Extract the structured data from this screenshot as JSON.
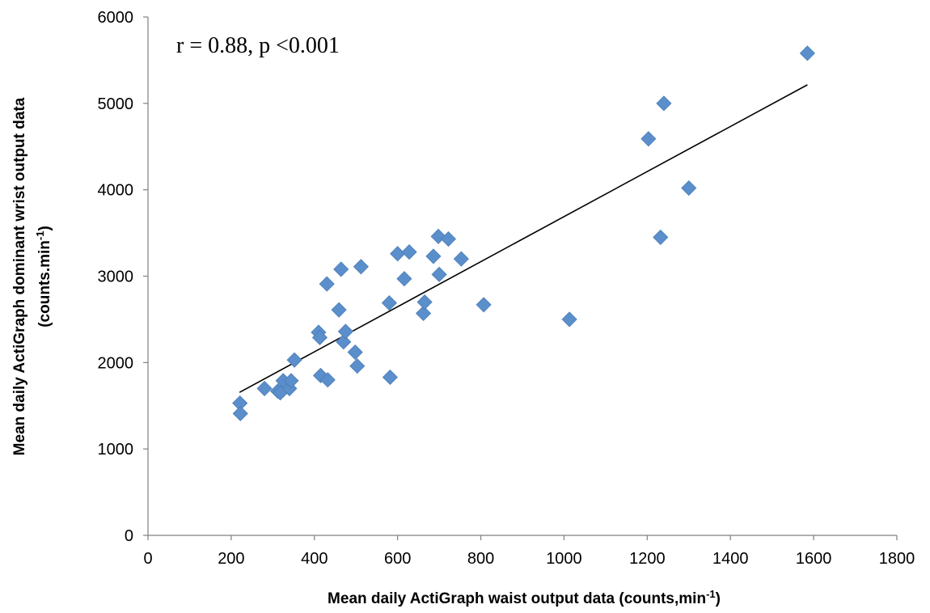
{
  "chart_data": {
    "type": "scatter",
    "title": "",
    "xlabel": "Mean daily ActiGraph waist output data (counts,min",
    "xlabel_sup": "-1",
    "xlabel_end": ")",
    "ylabel_line1": "Mean daily  ActiGraph dominant wrist output data",
    "ylabel_line2": "(counts.min",
    "ylabel_sup": "-1",
    "ylabel_end": ")",
    "xlim": [
      0,
      1800
    ],
    "ylim": [
      0,
      6000
    ],
    "xticks": [
      0,
      200,
      400,
      600,
      800,
      1000,
      1200,
      1400,
      1600,
      1800
    ],
    "yticks": [
      0,
      1000,
      2000,
      3000,
      4000,
      5000,
      6000
    ],
    "xtick_labels": [
      "0",
      "200",
      "400",
      "600",
      "800",
      "1000",
      "1200",
      "1400",
      "1600",
      "1800"
    ],
    "ytick_labels": [
      "0",
      "1000",
      "2000",
      "3000",
      "4000",
      "5000",
      "6000"
    ],
    "annotation": "r = 0.88, p <0.001",
    "grid": false,
    "marker": "diamond",
    "marker_color": "#5b8fcb",
    "trendline": {
      "x": [
        220,
        1585
      ],
      "y": [
        1655,
        5215
      ]
    },
    "points": [
      {
        "x": 221,
        "y": 1530
      },
      {
        "x": 222,
        "y": 1410
      },
      {
        "x": 280,
        "y": 1700
      },
      {
        "x": 312,
        "y": 1670
      },
      {
        "x": 318,
        "y": 1650
      },
      {
        "x": 325,
        "y": 1790
      },
      {
        "x": 340,
        "y": 1700
      },
      {
        "x": 344,
        "y": 1790
      },
      {
        "x": 352,
        "y": 2030
      },
      {
        "x": 410,
        "y": 2350
      },
      {
        "x": 413,
        "y": 2290
      },
      {
        "x": 415,
        "y": 1850
      },
      {
        "x": 430,
        "y": 2910
      },
      {
        "x": 432,
        "y": 1800
      },
      {
        "x": 459,
        "y": 2610
      },
      {
        "x": 464,
        "y": 3080
      },
      {
        "x": 470,
        "y": 2240
      },
      {
        "x": 475,
        "y": 2360
      },
      {
        "x": 498,
        "y": 2120
      },
      {
        "x": 503,
        "y": 1960
      },
      {
        "x": 512,
        "y": 3110
      },
      {
        "x": 580,
        "y": 2690
      },
      {
        "x": 582,
        "y": 1830
      },
      {
        "x": 600,
        "y": 3260
      },
      {
        "x": 616,
        "y": 2970
      },
      {
        "x": 628,
        "y": 3280
      },
      {
        "x": 662,
        "y": 2570
      },
      {
        "x": 665,
        "y": 2700
      },
      {
        "x": 686,
        "y": 3230
      },
      {
        "x": 698,
        "y": 3460
      },
      {
        "x": 700,
        "y": 3020
      },
      {
        "x": 722,
        "y": 3430
      },
      {
        "x": 753,
        "y": 3200
      },
      {
        "x": 807,
        "y": 2670
      },
      {
        "x": 1013,
        "y": 2500
      },
      {
        "x": 1203,
        "y": 4590
      },
      {
        "x": 1232,
        "y": 3450
      },
      {
        "x": 1240,
        "y": 5000
      },
      {
        "x": 1300,
        "y": 4020
      },
      {
        "x": 1585,
        "y": 5580
      }
    ]
  }
}
